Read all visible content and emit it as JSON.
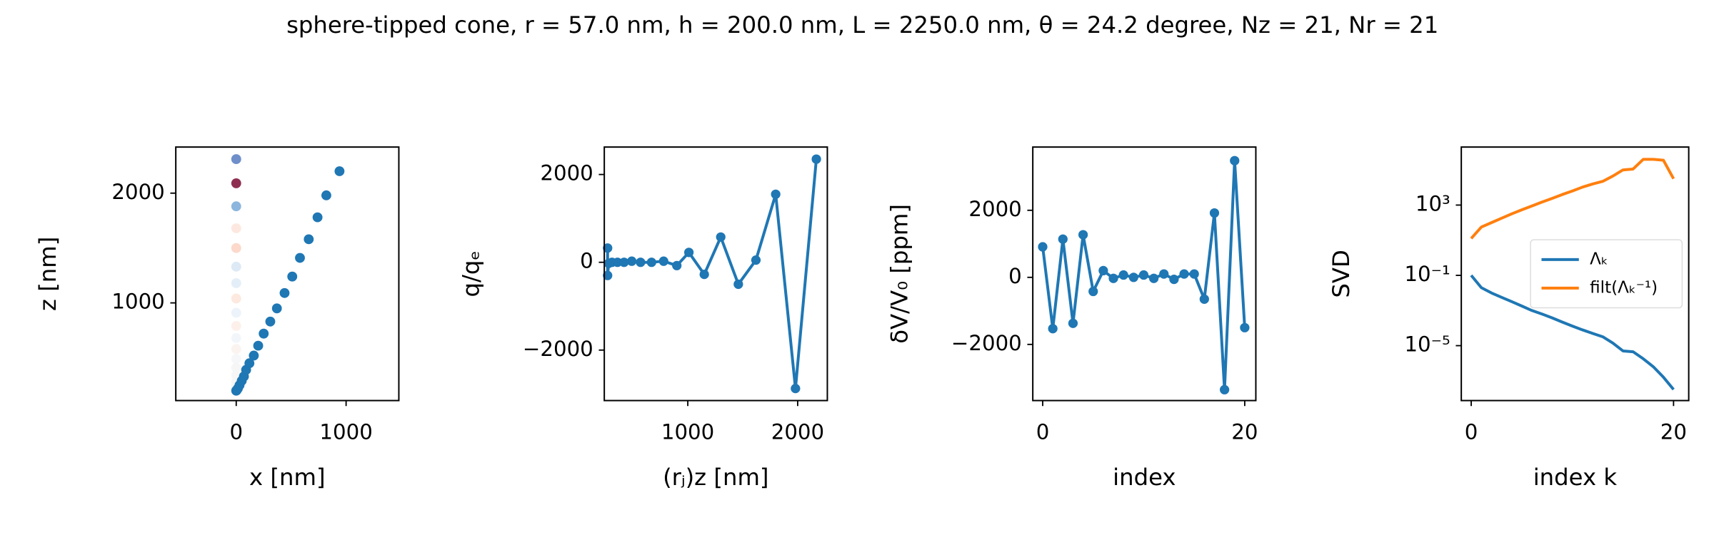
{
  "title": "sphere-tipped cone, r = 57.0 nm, h = 200.0 nm, L = 2250.0 nm, θ = 24.2 degree, Nz = 21, Nr = 21",
  "chart_data": [
    {
      "type": "scatter",
      "x_label": "x [nm]",
      "y_label": "z [nm]",
      "xlim": [
        -550,
        1480
      ],
      "ylim": [
        110,
        2420
      ],
      "xticks": [
        0,
        1000
      ],
      "yticks": [
        1000,
        2000
      ],
      "series": [
        {
          "colors": [
            "#6f8fca",
            "#8e2f52",
            "#8cb6dd",
            "#fde8df",
            "#fcd9cb",
            "#dde9f5",
            "#e4eef8",
            "#fde9df",
            "#edf3fa",
            "#fdf0ea",
            "#f2f6fb",
            "#fbf3ef",
            "#f5f7f9",
            "#f6f6f6",
            "#f6f6f6",
            "#f6f6f6",
            "#f6f6f6",
            "#f6f6f6"
          ],
          "x": [
            0,
            0,
            0,
            0,
            0,
            0,
            0,
            0,
            0,
            0,
            0,
            0,
            0,
            0,
            0,
            0,
            0,
            0
          ],
          "values": [
            2310,
            2090,
            1880,
            1680,
            1500,
            1330,
            1180,
            1040,
            910,
            790,
            680,
            580,
            490,
            410,
            340,
            280,
            240,
            210
          ]
        },
        {
          "color": "#1f77b4",
          "x": [
            0,
            5,
            15,
            30,
            50,
            70,
            90,
            120,
            160,
            200,
            250,
            310,
            370,
            440,
            510,
            580,
            660,
            740,
            820,
            940
          ],
          "values": [
            200,
            205,
            220,
            250,
            290,
            330,
            390,
            450,
            520,
            610,
            720,
            830,
            950,
            1090,
            1240,
            1410,
            1580,
            1780,
            1980,
            2200
          ]
        }
      ]
    },
    {
      "type": "line",
      "x_label": "(rⱼ)z [nm]",
      "y_label": "q/qₑ",
      "xlim": [
        240,
        2270
      ],
      "ylim": [
        -3150,
        2625
      ],
      "xticks": [
        1000,
        2000
      ],
      "yticks": [
        {
          "value": -2000,
          "label": "−2000"
        },
        0,
        2000
      ],
      "series": [
        {
          "color": "#1f77b4",
          "marker": true,
          "x": [
            270,
            270,
            280,
            310,
            360,
            420,
            490,
            570,
            670,
            780,
            900,
            1010,
            1150,
            1300,
            1460,
            1620,
            1800,
            1980,
            2170
          ],
          "values": [
            325,
            -300,
            -25,
            0,
            0,
            0,
            25,
            0,
            0,
            25,
            -75,
            225,
            -275,
            575,
            -500,
            50,
            1550,
            -2875,
            2350
          ]
        }
      ]
    },
    {
      "type": "line",
      "x_label": "index",
      "y_label": "δV/V₀ [ppm]",
      "xlim": [
        -0.98,
        21.1
      ],
      "ylim": [
        -3675,
        3886
      ],
      "xticks": [
        0,
        20
      ],
      "yticks": [
        {
          "value": -2000,
          "label": "−2000"
        },
        0,
        2000
      ],
      "series": [
        {
          "color": "#1f77b4",
          "marker": true,
          "x": [
            0,
            1,
            2,
            3,
            4,
            5,
            6,
            7,
            8,
            9,
            10,
            11,
            12,
            13,
            14,
            15,
            16,
            17,
            18,
            19,
            20
          ],
          "values": [
            910,
            -1530,
            1140,
            -1370,
            1270,
            -420,
            200,
            -30,
            70,
            0,
            70,
            -30,
            100,
            -60,
            100,
            100,
            -650,
            1920,
            -3350,
            3480,
            -1500
          ]
        }
      ]
    },
    {
      "type": "line",
      "x_label": "index k",
      "y_label": "SVD",
      "log_y": true,
      "legend": "center right",
      "xlim": [
        -0.98,
        21.5
      ],
      "ylim": [
        7.5e-09,
        2000000.0
      ],
      "xticks": [
        0,
        20
      ],
      "yticks": [
        {
          "value": 1e-05,
          "label": "10⁻⁵"
        },
        {
          "value": 0.1,
          "label": "10⁻¹"
        },
        {
          "value": 1000,
          "label": "10³"
        }
      ],
      "series": [
        {
          "name": "Λₖ",
          "color": "#1f77b4",
          "x": [
            0,
            1,
            2,
            3,
            4,
            5,
            6,
            7,
            8,
            9,
            10,
            11,
            12,
            13,
            14,
            15,
            16,
            17,
            18,
            19,
            20
          ],
          "values": [
            0.1,
            0.02,
            0.01,
            0.0056,
            0.0032,
            0.0018,
            0.001,
            0.00063,
            0.00038,
            0.00022,
            0.00013,
            7.9e-05,
            5e-05,
            3.2e-05,
            1.4e-05,
            5e-06,
            4.5e-06,
            1.8e-06,
            6.3e-07,
            1.6e-07,
            3.2e-08
          ]
        },
        {
          "name": "filt(Λₖ⁻¹)",
          "color": "#ff7f0e",
          "x": [
            0,
            1,
            2,
            3,
            4,
            5,
            6,
            7,
            8,
            9,
            10,
            11,
            12,
            13,
            14,
            15,
            16,
            17,
            18,
            19,
            20
          ],
          "values": [
            12.6,
            56,
            100,
            178,
            316,
            537,
            891,
            1480,
            2400,
            3980,
            6310,
            10500,
            15800,
            22400,
            44700,
            100000,
            112000,
            398000,
            398000,
            355000,
            31600
          ]
        }
      ]
    }
  ]
}
